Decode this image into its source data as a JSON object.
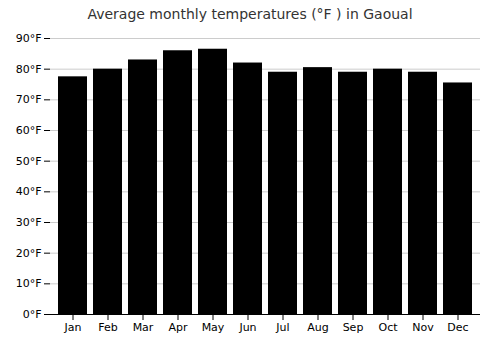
{
  "chart_data": {
    "type": "bar",
    "title": "Average monthly temperatures (°F ) in Gaoual",
    "categories": [
      "Jan",
      "Feb",
      "Mar",
      "Apr",
      "May",
      "Jun",
      "Jul",
      "Aug",
      "Sep",
      "Oct",
      "Nov",
      "Dec"
    ],
    "values": [
      77.5,
      80.0,
      83.0,
      86.0,
      86.5,
      82.0,
      79.0,
      80.5,
      79.0,
      80.0,
      79.0,
      75.5
    ],
    "ylim": [
      0,
      90
    ],
    "yticks": [
      {
        "value": 0,
        "label": "0°F"
      },
      {
        "value": 10,
        "label": "10°F"
      },
      {
        "value": 20,
        "label": "20°F"
      },
      {
        "value": 30,
        "label": "30°F"
      },
      {
        "value": 40,
        "label": "40°F"
      },
      {
        "value": 50,
        "label": "50°F"
      },
      {
        "value": 60,
        "label": "60°F"
      },
      {
        "value": 70,
        "label": "70°F"
      },
      {
        "value": 80,
        "label": "80°F"
      },
      {
        "value": 90,
        "label": "90°F"
      }
    ],
    "grid": true
  }
}
